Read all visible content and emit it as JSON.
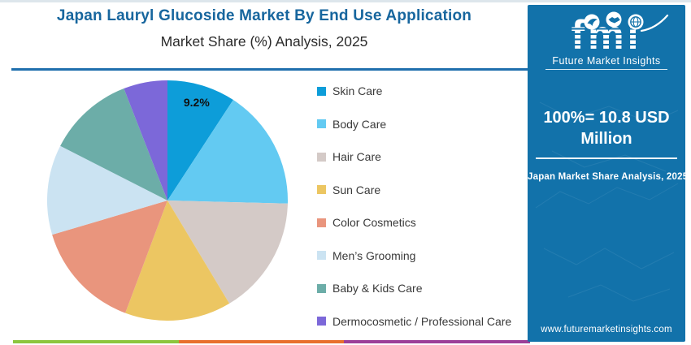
{
  "header": {
    "title": "Japan Lauryl Glucoside Market By End Use Application",
    "subtitle": "Market Share (%) Analysis, 2025"
  },
  "chart_data": {
    "type": "pie",
    "title": "Japan Lauryl Glucoside Market By End Use Application",
    "subtitle": "Market Share (%) Analysis, 2025",
    "start_angle_deg": 0,
    "direction": "clockwise",
    "categories": [
      "Skin Care",
      "Body Care",
      "Hair Care",
      "Sun Care",
      "Color Cosmetics",
      "Men’s Grooming",
      "Baby & Kids Care",
      "Dermocosmetic / Professional Care"
    ],
    "values": [
      9.2,
      16.2,
      16.0,
      14.3,
      14.7,
      12.1,
      11.6,
      5.9
    ],
    "colors": [
      "#0d9dd9",
      "#63caf2",
      "#d4cac7",
      "#ecc662",
      "#e9957d",
      "#cbe3f2",
      "#6cada8",
      "#7c68d9"
    ],
    "data_label": {
      "category": "Skin Care",
      "text": "9.2%"
    },
    "legend_position": "right",
    "total_label": "100%= 10.8 USD Million"
  },
  "sidebar": {
    "logo": {
      "wordmark": "fmi",
      "tagline": "Future Market Insights"
    },
    "headline": "100%= 10.8 USD Million",
    "caption": "Japan Market Share Analysis, 2025",
    "website": "www.futuremarketinsights.com",
    "bg_color": "#1272aa"
  },
  "footer_stripe_colors": [
    "#8cc63e",
    "#e8702d",
    "#9c3f98"
  ]
}
